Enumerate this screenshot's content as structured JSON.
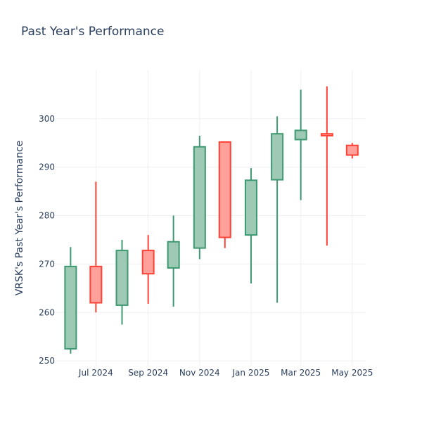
{
  "chart_data": {
    "type": "candlestick",
    "title": "Past Year's Performance",
    "xlabel": "",
    "ylabel": "VRSK's Past Year's Performance",
    "ylim": [
      249,
      310
    ],
    "yticks": [
      250,
      260,
      270,
      280,
      290,
      300
    ],
    "xticks": [
      {
        "label": "Jul 2024",
        "date": "2024-07-01"
      },
      {
        "label": "Sep 2024",
        "date": "2024-09-01"
      },
      {
        "label": "Nov 2024",
        "date": "2024-11-01"
      },
      {
        "label": "Jan 2025",
        "date": "2025-01-01"
      },
      {
        "label": "Mar 2025",
        "date": "2025-03-01"
      },
      {
        "label": "May 2025",
        "date": "2025-05-01"
      }
    ],
    "grid": true,
    "colors": {
      "increasing_line": "#3d9970",
      "increasing_fill": "#9ecab5",
      "decreasing_line": "#ff4136",
      "decreasing_fill": "#ffa09b",
      "text": "#2a3f5f",
      "grid": "#eef0f4"
    },
    "candles": [
      {
        "date": "2024-06-01",
        "open": 252.5,
        "high": 273.5,
        "low": 251.5,
        "close": 269.5
      },
      {
        "date": "2024-07-01",
        "open": 269.5,
        "high": 287.0,
        "low": 260.0,
        "close": 262.0
      },
      {
        "date": "2024-08-01",
        "open": 261.5,
        "high": 275.0,
        "low": 257.5,
        "close": 272.8
      },
      {
        "date": "2024-09-01",
        "open": 272.8,
        "high": 276.0,
        "low": 261.8,
        "close": 268.0
      },
      {
        "date": "2024-10-01",
        "open": 269.2,
        "high": 280.0,
        "low": 261.2,
        "close": 274.6
      },
      {
        "date": "2024-11-01",
        "open": 273.3,
        "high": 296.5,
        "low": 271.0,
        "close": 294.2
      },
      {
        "date": "2024-12-01",
        "open": 295.2,
        "high": 295.2,
        "low": 273.3,
        "close": 275.5
      },
      {
        "date": "2025-01-01",
        "open": 276.0,
        "high": 289.8,
        "low": 266.0,
        "close": 287.3
      },
      {
        "date": "2025-02-01",
        "open": 287.4,
        "high": 300.5,
        "low": 262.0,
        "close": 296.9
      },
      {
        "date": "2025-03-01",
        "open": 295.7,
        "high": 306.0,
        "low": 283.2,
        "close": 297.6
      },
      {
        "date": "2025-04-01",
        "open": 296.9,
        "high": 306.7,
        "low": 273.8,
        "close": 296.5
      },
      {
        "date": "2025-05-01",
        "open": 294.5,
        "high": 295.0,
        "low": 291.8,
        "close": 292.5
      }
    ]
  }
}
